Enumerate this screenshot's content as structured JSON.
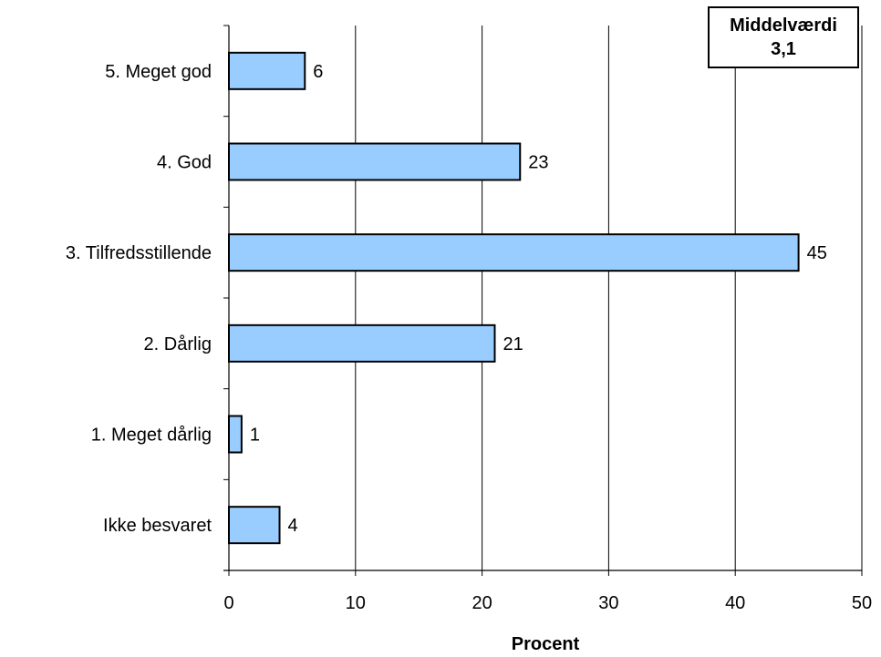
{
  "chart_data": {
    "type": "bar",
    "orientation": "horizontal",
    "categories": [
      "5. Meget god",
      "4. God",
      "3. Tilfredsstillende",
      "2. Dårlig",
      "1. Meget dårlig",
      "Ikke besvaret"
    ],
    "values": [
      6,
      23,
      45,
      21,
      1,
      4
    ],
    "data_labels": [
      "6",
      "23",
      "45",
      "21",
      "1",
      "4"
    ],
    "xlabel": "Procent",
    "xlim": [
      0,
      50
    ],
    "x_ticks": [
      "0",
      "10",
      "20",
      "30",
      "40",
      "50"
    ],
    "grid": "vertical",
    "bar_color": "#99CCFF",
    "legend": null
  },
  "annotation": {
    "title": "Middelværdi",
    "value": "3,1"
  }
}
